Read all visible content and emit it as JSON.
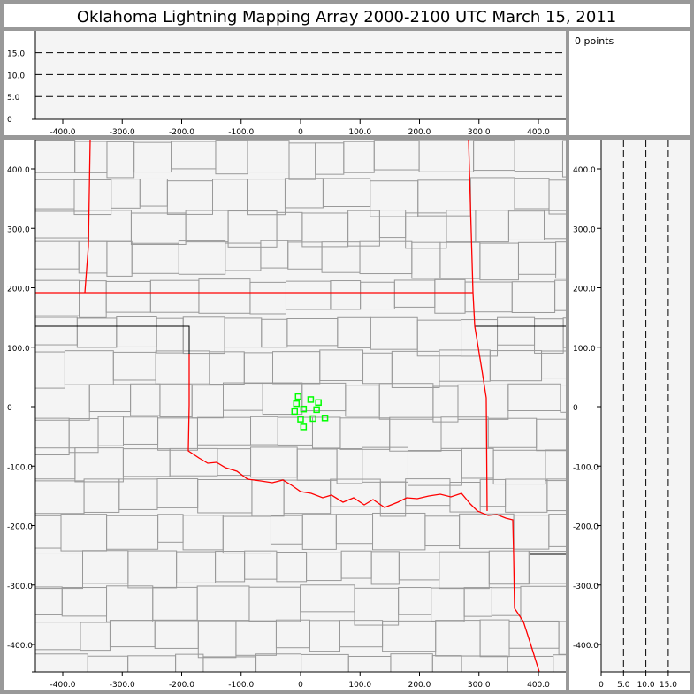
{
  "title": "Oklahoma Lightning Mapping Array   2000-2100 UTC  March 15, 2011",
  "points_label": "0 points",
  "colors": {
    "frame": "#999999",
    "plot_bg": "#f4f4f4",
    "county": "#999999",
    "state_border": "#ff0000",
    "station": "#00ff00"
  },
  "top_panel": {
    "x_ticks": [
      "-400.0",
      "-300.0",
      "-200.0",
      "-100.0",
      "0",
      "100.0",
      "200.0",
      "300.0",
      "400.0"
    ],
    "y_ticks": [
      "0",
      "5.0",
      "10.0",
      "15.0"
    ],
    "dashed_levels": [
      5,
      10,
      15
    ]
  },
  "plan_view": {
    "x_ticks": [
      "-400.0",
      "-300.0",
      "-200.0",
      "-100.0",
      "0",
      "100.0",
      "200.0",
      "300.0",
      "400.0"
    ],
    "y_ticks": [
      "400.0",
      "300.0",
      "200.0",
      "100.0",
      "0",
      "-100.0",
      "-200.0",
      "-300.0",
      "-400.0"
    ],
    "stations_km": [
      [
        -4,
        17
      ],
      [
        17,
        12
      ],
      [
        30,
        7
      ],
      [
        -7,
        5
      ],
      [
        5,
        -4
      ],
      [
        -10,
        -8
      ],
      [
        27,
        -5
      ],
      [
        0,
        -21
      ],
      [
        21,
        -20
      ],
      [
        41,
        -19
      ],
      [
        5,
        -34
      ]
    ]
  },
  "side_panel": {
    "y_ticks": [
      "400.0",
      "300.0",
      "200.0",
      "100.0",
      "0",
      "-100.0",
      "-200.0",
      "-300.0",
      "-400.0"
    ],
    "x_ticks": [
      "0",
      "5.0",
      "10.0",
      "15.0"
    ],
    "dashed_levels": [
      5,
      10,
      15
    ]
  }
}
